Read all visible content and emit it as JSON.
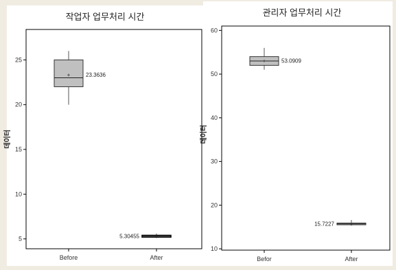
{
  "chart_data": [
    {
      "type": "box",
      "title": "작업자 업무처리 시간",
      "xlabel": "",
      "ylabel": "데이터",
      "ylim": [
        3.9,
        28.4
      ],
      "yticks": [
        5,
        10,
        15,
        20,
        25
      ],
      "categories": [
        "Before",
        "After"
      ],
      "boxes": [
        {
          "category": "Before",
          "min": 20,
          "q1": 22,
          "median": 23,
          "q3": 25,
          "max": 26,
          "label": "23.3636",
          "fill": "#c0c0c0",
          "highlight": false
        },
        {
          "category": "After",
          "min": 5.1,
          "q1": 5.2,
          "median": 5.3,
          "q3": 5.4,
          "max": 5.6,
          "label": "5.30455",
          "fill": "#ffffff",
          "highlight": true
        }
      ],
      "grid": false,
      "legend": "none"
    },
    {
      "type": "box",
      "title": "관리자 업무처리 시간",
      "xlabel": "",
      "ylabel": "데이터",
      "ylim": [
        9.7,
        61
      ],
      "yticks": [
        10,
        20,
        30,
        40,
        50,
        60
      ],
      "categories": [
        "Befor",
        "After"
      ],
      "boxes": [
        {
          "category": "Befor",
          "min": 51,
          "q1": 52,
          "median": 53,
          "q3": 54,
          "max": 56,
          "label": "53.0909",
          "fill": "#c0c0c0",
          "highlight": false
        },
        {
          "category": "After",
          "min": 15.3,
          "q1": 15.5,
          "median": 15.7,
          "q3": 15.9,
          "max": 16.6,
          "label": "15.7227",
          "fill": "#c0c0c0",
          "highlight": false
        }
      ],
      "grid": false,
      "legend": "none"
    }
  ]
}
